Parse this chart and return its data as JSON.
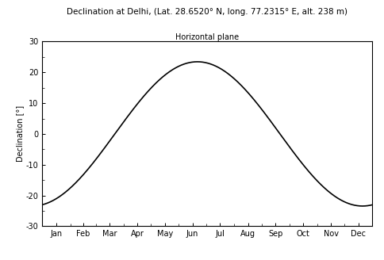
{
  "title": "Declination at Delhi, (Lat. 28.6520° N, long. 77.2315° E, alt. 238 m)",
  "subtitle": "Horizontal plane",
  "ylabel": "Declination [°]",
  "months": [
    "Jan",
    "Feb",
    "Mar",
    "Apr",
    "May",
    "Jun",
    "Jul",
    "Aug",
    "Sep",
    "Oct",
    "Nov",
    "Dec"
  ],
  "ylim": [
    -30,
    30
  ],
  "yticks": [
    -30,
    -20,
    -10,
    0,
    10,
    20,
    30
  ],
  "line_color": "#000000",
  "line_width": 1.2,
  "bg_color": "#ffffff",
  "title_color": "#000000",
  "subtitle_color": "#000000",
  "title_fontsize": 7.5,
  "subtitle_fontsize": 7.0,
  "tick_fontsize": 7.0,
  "ylabel_fontsize": 7.0
}
